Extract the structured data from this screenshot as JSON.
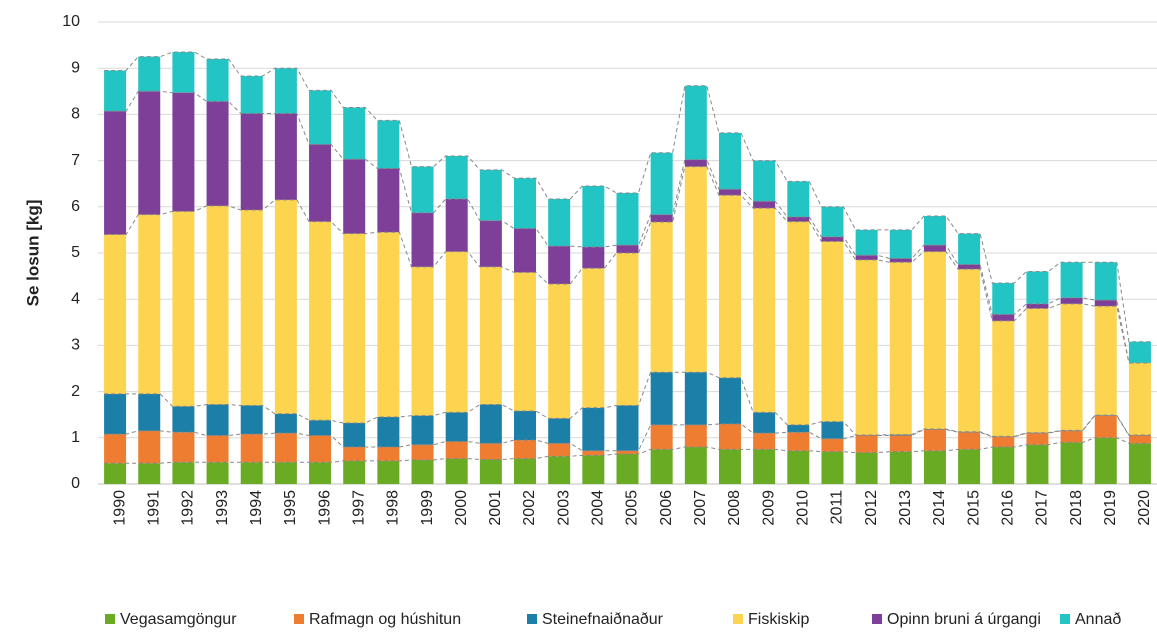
{
  "chart_data": {
    "type": "stacked-bar",
    "y_label": "Se losun [kg]",
    "categories": [
      "1990",
      "1991",
      "1992",
      "1993",
      "1994",
      "1995",
      "1996",
      "1997",
      "1998",
      "1999",
      "2000",
      "2001",
      "2002",
      "2003",
      "2004",
      "2005",
      "2006",
      "2007",
      "2008",
      "2009",
      "2010",
      "2011",
      "2012",
      "2013",
      "2014",
      "2015",
      "2016",
      "2017",
      "2018",
      "2019",
      "2020"
    ],
    "series": [
      {
        "name": "Vegasamgöngur",
        "color": "#6aab24",
        "values": [
          0.45,
          0.45,
          0.47,
          0.47,
          0.47,
          0.47,
          0.47,
          0.5,
          0.5,
          0.52,
          0.55,
          0.53,
          0.55,
          0.6,
          0.62,
          0.65,
          0.75,
          0.8,
          0.75,
          0.75,
          0.72,
          0.7,
          0.68,
          0.7,
          0.72,
          0.75,
          0.8,
          0.85,
          0.9,
          1.0,
          0.88
        ]
      },
      {
        "name": "Rafmagn og húshitun",
        "color": "#ee7d31",
        "values": [
          0.63,
          0.7,
          0.65,
          0.58,
          0.61,
          0.63,
          0.58,
          0.3,
          0.3,
          0.33,
          0.37,
          0.35,
          0.4,
          0.28,
          0.1,
          0.07,
          0.53,
          0.48,
          0.55,
          0.35,
          0.4,
          0.28,
          0.37,
          0.35,
          0.46,
          0.37,
          0.22,
          0.25,
          0.25,
          0.48,
          0.17
        ]
      },
      {
        "name": "Steinefnaiðnaður",
        "color": "#1b7fa8",
        "values": [
          0.87,
          0.8,
          0.56,
          0.67,
          0.62,
          0.42,
          0.33,
          0.52,
          0.65,
          0.63,
          0.63,
          0.84,
          0.63,
          0.54,
          0.93,
          0.98,
          1.14,
          1.14,
          1.0,
          0.45,
          0.16,
          0.37,
          0.01,
          0.02,
          0.01,
          0.01,
          0.01,
          0.01,
          0.01,
          0.01,
          0.01
        ]
      },
      {
        "name": "Fiskiskip",
        "color": "#fdd44f",
        "values": [
          3.45,
          3.88,
          4.22,
          4.3,
          4.23,
          4.63,
          4.3,
          4.1,
          4.0,
          3.22,
          3.48,
          2.98,
          3.0,
          2.91,
          3.02,
          3.3,
          3.25,
          4.45,
          3.95,
          4.42,
          4.4,
          3.9,
          3.79,
          3.73,
          3.84,
          3.52,
          2.5,
          2.69,
          2.74,
          2.36,
          1.56
        ]
      },
      {
        "name": "Opinn bruni á úrgangi",
        "color": "#7e3f98",
        "values": [
          2.67,
          2.67,
          2.57,
          2.26,
          2.09,
          1.87,
          1.67,
          1.61,
          1.38,
          1.17,
          1.14,
          1.0,
          0.95,
          0.82,
          0.46,
          0.17,
          0.16,
          0.15,
          0.13,
          0.15,
          0.1,
          0.1,
          0.1,
          0.08,
          0.14,
          0.1,
          0.14,
          0.1,
          0.13,
          0.13,
          0
        ]
      },
      {
        "name": "Annað",
        "color": "#22c4c4",
        "values": [
          0.88,
          0.75,
          0.88,
          0.92,
          0.81,
          0.98,
          1.17,
          1.12,
          1.04,
          1.0,
          0.93,
          1.1,
          1.09,
          1.02,
          1.32,
          1.13,
          1.34,
          1.6,
          1.22,
          0.88,
          0.77,
          0.65,
          0.55,
          0.62,
          0.63,
          0.67,
          0.68,
          0.7,
          0.77,
          0.82,
          0.46
        ]
      }
    ],
    "ylim": [
      0,
      10
    ],
    "yticks": [
      0,
      1,
      2,
      3,
      4,
      5,
      6,
      7,
      8,
      9,
      10
    ],
    "grid": true,
    "legend": "bottom"
  }
}
